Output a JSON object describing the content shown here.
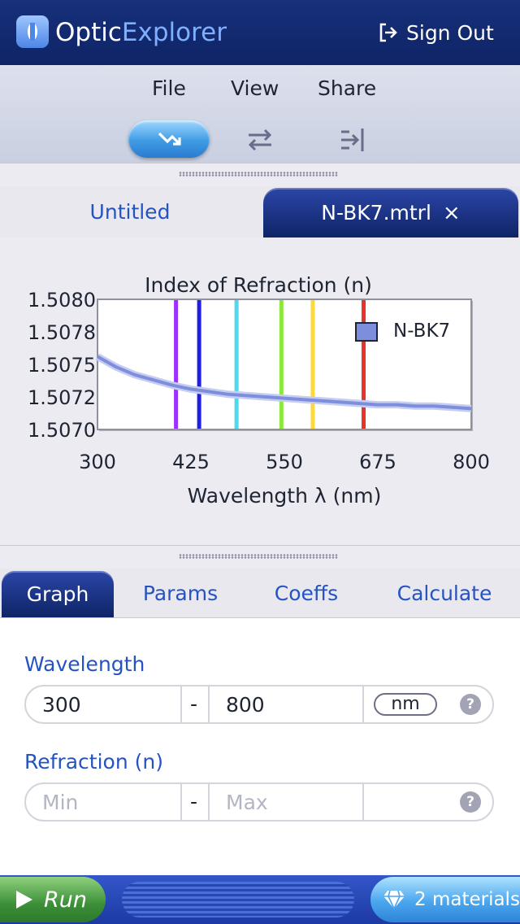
{
  "app": {
    "title_main": "Optic",
    "title_accent": "Explorer",
    "sign_out": "Sign Out"
  },
  "menu": [
    "File",
    "View",
    "Share"
  ],
  "toolbar_icons": [
    "trend-down-icon",
    "swap-arrows-icon",
    "align-right-arrow-icon"
  ],
  "doc_tabs": {
    "untitled": "Untitled",
    "active": "N-BK7.mtrl",
    "close": "×"
  },
  "chart_data": {
    "type": "line",
    "title": "Index of Refraction (n)",
    "xlabel": "Wavelength λ (nm)",
    "ylabel": "",
    "xlim": [
      300,
      800
    ],
    "ylim": [
      1.507,
      1.508
    ],
    "x_ticks": [
      "300",
      "425",
      "550",
      "675",
      "800"
    ],
    "y_ticks": [
      "1.5080",
      "1.5078",
      "1.5075",
      "1.5072",
      "1.5070"
    ],
    "legend": "top-right",
    "series": [
      {
        "name": "N-BK7",
        "color": "#7d8fdc",
        "x": [
          300,
          325,
          350,
          375,
          400,
          425,
          450,
          475,
          500,
          525,
          550,
          575,
          600,
          625,
          650,
          675,
          700,
          725,
          750,
          775,
          800
        ],
        "y": [
          1.50756,
          1.50748,
          1.50742,
          1.50738,
          1.50734,
          1.50731,
          1.50729,
          1.50727,
          1.50726,
          1.50725,
          1.50724,
          1.50723,
          1.50722,
          1.50721,
          1.5072,
          1.50719,
          1.50719,
          1.50718,
          1.50718,
          1.50717,
          1.50716
        ]
      }
    ],
    "wavelength_lines": [
      {
        "x": 405,
        "color": "#9b30ff"
      },
      {
        "x": 436,
        "color": "#1f1fe0"
      },
      {
        "x": 486,
        "color": "#4fd8ee"
      },
      {
        "x": 546,
        "color": "#8ee83a"
      },
      {
        "x": 588,
        "color": "#ffd83a"
      },
      {
        "x": 656,
        "color": "#e8322a"
      }
    ]
  },
  "bottom_tabs": [
    "Graph",
    "Params",
    "Coeffs",
    "Calculate"
  ],
  "form": {
    "wavelength": {
      "label": "Wavelength",
      "min": "300",
      "separator": "-",
      "max": "800",
      "unit": "nm",
      "help": "?"
    },
    "refraction": {
      "label": "Refraction (n)",
      "min_placeholder": "Min",
      "separator": "-",
      "max_placeholder": "Max",
      "help": "?"
    }
  },
  "footer": {
    "run": "Run",
    "materials": "2 materials"
  }
}
